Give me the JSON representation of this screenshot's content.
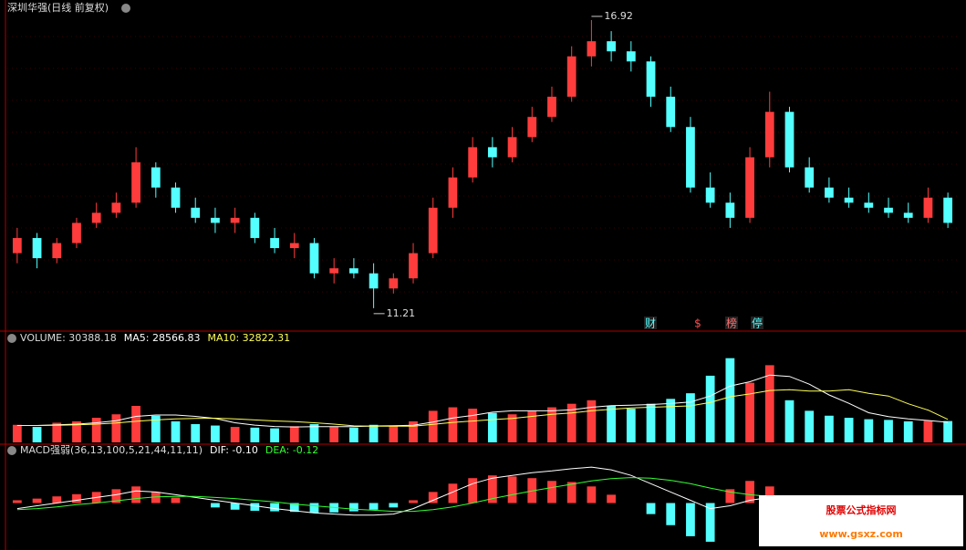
{
  "chart_data": [
    {
      "type": "candlestick",
      "title": "深圳华强(日线 前复权)",
      "open": [
        12.3,
        12.6,
        12.2,
        12.5,
        12.9,
        13.1,
        13.3,
        14.0,
        13.6,
        13.2,
        13.0,
        12.9,
        13.0,
        12.6,
        12.4,
        12.5,
        11.9,
        12.0,
        11.9,
        11.6,
        11.8,
        12.3,
        13.2,
        13.8,
        14.4,
        14.2,
        14.6,
        15.0,
        15.4,
        16.2,
        16.5,
        16.3,
        16.1,
        15.4,
        14.8,
        13.6,
        13.3,
        13.0,
        14.2,
        15.1,
        14.0,
        13.6,
        13.4,
        13.3,
        13.2,
        13.1,
        13.0,
        13.4
      ],
      "high": [
        12.8,
        12.7,
        12.6,
        13.0,
        13.3,
        13.5,
        14.4,
        14.1,
        13.7,
        13.4,
        13.2,
        13.2,
        13.1,
        12.8,
        12.7,
        12.6,
        12.2,
        12.2,
        12.1,
        11.9,
        12.5,
        13.4,
        14.0,
        14.6,
        14.6,
        14.8,
        15.2,
        15.6,
        16.4,
        16.92,
        16.7,
        16.5,
        16.2,
        15.6,
        15.0,
        13.9,
        13.5,
        14.4,
        15.5,
        15.2,
        14.2,
        13.8,
        13.6,
        13.5,
        13.4,
        13.3,
        13.6,
        13.5
      ],
      "low": [
        12.1,
        12.0,
        12.1,
        12.4,
        12.8,
        13.0,
        13.2,
        13.4,
        13.1,
        12.9,
        12.7,
        12.7,
        12.5,
        12.3,
        12.2,
        11.8,
        11.7,
        11.8,
        11.21,
        11.5,
        11.7,
        12.2,
        13.0,
        13.7,
        14.0,
        14.1,
        14.5,
        14.9,
        15.3,
        16.0,
        16.1,
        15.9,
        15.2,
        14.7,
        13.5,
        13.2,
        12.8,
        12.9,
        14.0,
        13.9,
        13.5,
        13.3,
        13.2,
        13.1,
        13.0,
        12.9,
        12.9,
        12.8
      ],
      "close": [
        12.6,
        12.2,
        12.5,
        12.9,
        13.1,
        13.3,
        14.1,
        13.6,
        13.2,
        13.0,
        12.9,
        13.0,
        12.6,
        12.4,
        12.5,
        11.9,
        12.0,
        11.9,
        11.6,
        11.8,
        12.3,
        13.2,
        13.8,
        14.4,
        14.2,
        14.6,
        15.0,
        15.4,
        16.2,
        16.5,
        16.3,
        16.1,
        15.4,
        14.8,
        13.6,
        13.3,
        13.0,
        14.2,
        15.1,
        14.0,
        13.6,
        13.4,
        13.3,
        13.2,
        13.1,
        13.0,
        13.4,
        12.9
      ],
      "up_color": "#ff3c3c",
      "down_color": "#54ffff",
      "ylim": [
        10.9,
        17.1
      ],
      "annotations": [
        "16.92",
        "11.21"
      ],
      "events": [
        "财",
        "$",
        "榜",
        "停"
      ]
    },
    {
      "type": "volume",
      "title": "VOLUME: 30388.18",
      "values": [
        25000,
        22000,
        28000,
        30000,
        35000,
        40000,
        52000,
        38000,
        30000,
        26000,
        24000,
        22000,
        21000,
        20000,
        23000,
        26000,
        22000,
        21000,
        25000,
        24000,
        30000,
        45000,
        50000,
        48000,
        42000,
        40000,
        45000,
        50000,
        55000,
        60000,
        52000,
        48000,
        55000,
        62000,
        70000,
        95000,
        120000,
        85000,
        110000,
        60000,
        45000,
        38000,
        35000,
        33000,
        32000,
        30000,
        31000,
        30388.18
      ],
      "series": [
        {
          "label": "MA5: 28566.83",
          "color": "#ffffff",
          "values": [
            24000,
            24000,
            25000,
            26000,
            28000,
            31000,
            37000,
            39000,
            39000,
            37000,
            34000,
            28000,
            24600,
            22600,
            22000,
            22400,
            22400,
            22400,
            23400,
            23600,
            24400,
            29000,
            34800,
            38400,
            43000,
            45000,
            45000,
            45000,
            46400,
            50000,
            52400,
            53000,
            54000,
            55400,
            57400,
            66000,
            80400,
            86400,
            96000,
            94000,
            83000,
            67600,
            55600,
            42200,
            36600,
            33600,
            31200,
            28566.83
          ]
        },
        {
          "label": "MA10: 32822.31",
          "color": "#ffff55",
          "values": [
            24000,
            24000,
            24500,
            25000,
            26000,
            27500,
            30000,
            32000,
            33500,
            34000,
            34500,
            33500,
            32000,
            30500,
            29500,
            28000,
            26000,
            23500,
            23000,
            23000,
            23200,
            25700,
            28500,
            30400,
            32500,
            34000,
            37000,
            40000,
            42000,
            45000,
            47000,
            49000,
            50000,
            51000,
            52000,
            57000,
            65000,
            69000,
            74000,
            75000,
            73000,
            73000,
            75000,
            70000,
            66000,
            55000,
            46000,
            32822.31
          ]
        }
      ],
      "ylim": [
        0,
        130000
      ]
    },
    {
      "type": "macd",
      "title": "MACD强弱(36,13,100,5,21,44,11,11)",
      "values": [
        0.05,
        0.08,
        0.12,
        0.16,
        0.2,
        0.25,
        0.3,
        0.2,
        0.1,
        0.0,
        -0.08,
        -0.12,
        -0.14,
        -0.15,
        -0.16,
        -0.18,
        -0.17,
        -0.15,
        -0.12,
        -0.08,
        0.05,
        0.2,
        0.35,
        0.45,
        0.5,
        0.48,
        0.45,
        0.4,
        0.38,
        0.3,
        0.15,
        0.0,
        -0.2,
        -0.4,
        -0.6,
        -0.7,
        0.25,
        0.4,
        0.3,
        -0.3,
        -0.35,
        -0.3,
        -0.25,
        -0.2,
        -0.15,
        -0.1,
        -0.06,
        0.04
      ],
      "series": [
        {
          "label": "DIF: -0.10",
          "color": "#ffffff",
          "values": [
            -0.1,
            -0.05,
            0.0,
            0.05,
            0.1,
            0.15,
            0.22,
            0.2,
            0.15,
            0.1,
            0.05,
            0.0,
            -0.05,
            -0.1,
            -0.14,
            -0.18,
            -0.2,
            -0.22,
            -0.22,
            -0.2,
            -0.1,
            0.05,
            0.2,
            0.35,
            0.45,
            0.5,
            0.55,
            0.58,
            0.62,
            0.65,
            0.6,
            0.5,
            0.35,
            0.2,
            0.05,
            -0.1,
            -0.05,
            0.05,
            0.1,
            0.0,
            -0.1,
            -0.15,
            -0.18,
            -0.2,
            -0.18,
            -0.15,
            -0.12,
            -0.1
          ]
        },
        {
          "label": "DEA: -0.12",
          "color": "#33ff33",
          "values": [
            -0.12,
            -0.1,
            -0.07,
            -0.03,
            0.0,
            0.04,
            0.08,
            0.11,
            0.12,
            0.12,
            0.1,
            0.08,
            0.05,
            0.02,
            -0.02,
            -0.05,
            -0.08,
            -0.11,
            -0.13,
            -0.15,
            -0.15,
            -0.12,
            -0.07,
            0.0,
            0.08,
            0.15,
            0.22,
            0.28,
            0.34,
            0.4,
            0.44,
            0.46,
            0.45,
            0.41,
            0.35,
            0.27,
            0.2,
            0.15,
            0.12,
            0.1,
            0.06,
            0.02,
            -0.02,
            -0.06,
            -0.09,
            -0.11,
            -0.12,
            -0.12
          ]
        }
      ],
      "ylim": [
        -0.8,
        0.8
      ]
    }
  ],
  "watermark": {
    "title": "股票公式指标网",
    "url": "www.gsxz.com"
  }
}
